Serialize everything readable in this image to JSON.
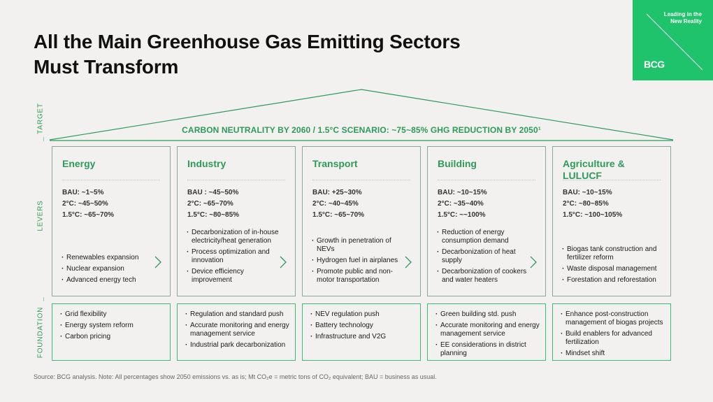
{
  "title": {
    "line1": "All the Main Greenhouse Gas Emitting Sectors",
    "line2": "Must Transform"
  },
  "brand": {
    "tagline": "Leading in the New Reality",
    "logo": "BCG",
    "color": "#1fc36b"
  },
  "labels": {
    "target": "TARGET",
    "levers": "LEVERS",
    "foundation": "FOUNDATION"
  },
  "target_text": "CARBON NEUTRALITY BY 2060 / 1.5°C SCENARIO: ~75~85% GHG REDUCTION BY 2050¹",
  "sectors": [
    {
      "name": "Energy",
      "stats": [
        "BAU: ~1~5%",
        "2°C: ~45~50%",
        "1.5°C: ~65~70%"
      ],
      "levers": [
        "Renewables expansion",
        "Nuclear expansion",
        "Advanced energy tech"
      ],
      "foundation": [
        "Grid flexibility",
        "Energy system reform",
        "Carbon pricing"
      ]
    },
    {
      "name": "Industry",
      "stats": [
        "BAU : ~45~50%",
        "2°C:   ~65~70%",
        "1.5°C:   ~80~85%"
      ],
      "levers": [
        "Decarbonization of in-house electricity/heat generation",
        "Process optimization and innovation",
        "Device efficiency improvement"
      ],
      "foundation": [
        "Regulation and standard push",
        "Accurate monitoring and energy management service",
        "Industrial park decarbonization"
      ]
    },
    {
      "name": "Transport",
      "stats": [
        "BAU: +25~30%",
        "2°C: ~40~45%",
        "1.5°C: ~65~70%"
      ],
      "levers": [
        "Growth in penetration of NEVs",
        "Hydrogen fuel in airplanes",
        "Promote public and non-motor transportation"
      ],
      "foundation": [
        "NEV regulation push",
        "Battery technology",
        "Infrastructure and V2G"
      ]
    },
    {
      "name": "Building",
      "stats": [
        "BAU: ~10~15%",
        "2°C: ~35~40%",
        "1.5°C: ~~100%"
      ],
      "levers": [
        "Reduction of energy consumption demand",
        "Decarbonization of heat supply",
        "Decarbonization of cookers and water heaters"
      ],
      "foundation": [
        "Green building std. push",
        "Accurate monitoring and energy management service",
        "EE considerations in district planning"
      ]
    },
    {
      "name": "Agriculture & LULUCF",
      "stats": [
        "BAU: ~10~15%",
        "2°C: ~80~85%",
        "1.5°C: ~100~105%"
      ],
      "levers": [
        "Biogas tank construction and fertilizer reform",
        "Waste disposal management",
        "Forestation and reforestation"
      ],
      "foundation": [
        "Enhance post-construction management of biogas projects",
        "Build enablers for advanced fertilization",
        "Mindset shift"
      ]
    }
  ],
  "source": "Source: BCG analysis. Note: All percentages show 2050 emissions vs. as is; Mt CO₂e = metric tons of CO₂ equivalent; BAU = business as usual.",
  "colors": {
    "accent": "#2e9a5a",
    "lever_border": "#8aa898",
    "foundation_border": "#3dbb72",
    "background": "#f2f1ef"
  }
}
